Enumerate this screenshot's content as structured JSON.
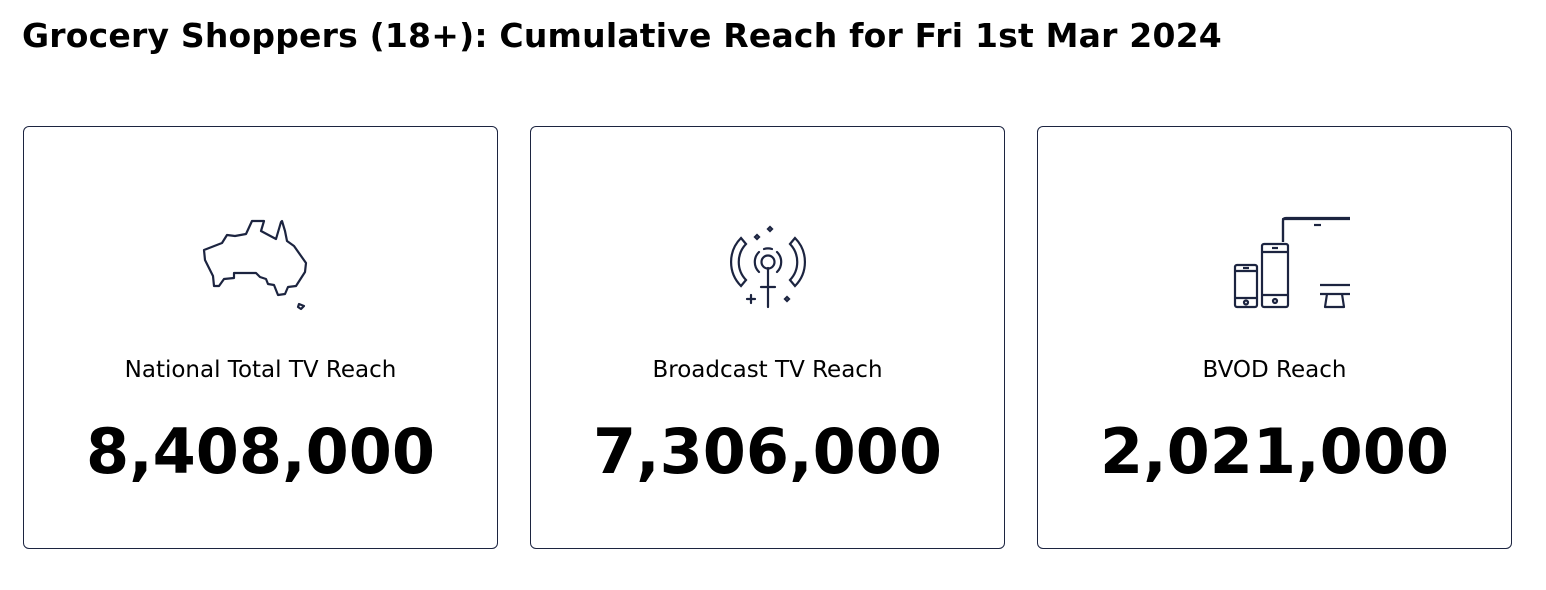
{
  "title": "Grocery Shoppers (18+): Cumulative Reach for Fri 1st Mar 2024",
  "colors": {
    "icon": "#1c2440",
    "border": "#1c2440"
  },
  "cards": [
    {
      "label": "National Total TV Reach",
      "value": "8,408,000",
      "icon": "australia-map-icon"
    },
    {
      "label": "Broadcast TV Reach",
      "value": "7,306,000",
      "icon": "broadcast-antenna-icon"
    },
    {
      "label": "BVOD Reach",
      "value": "2,021,000",
      "icon": "devices-icon"
    }
  ]
}
